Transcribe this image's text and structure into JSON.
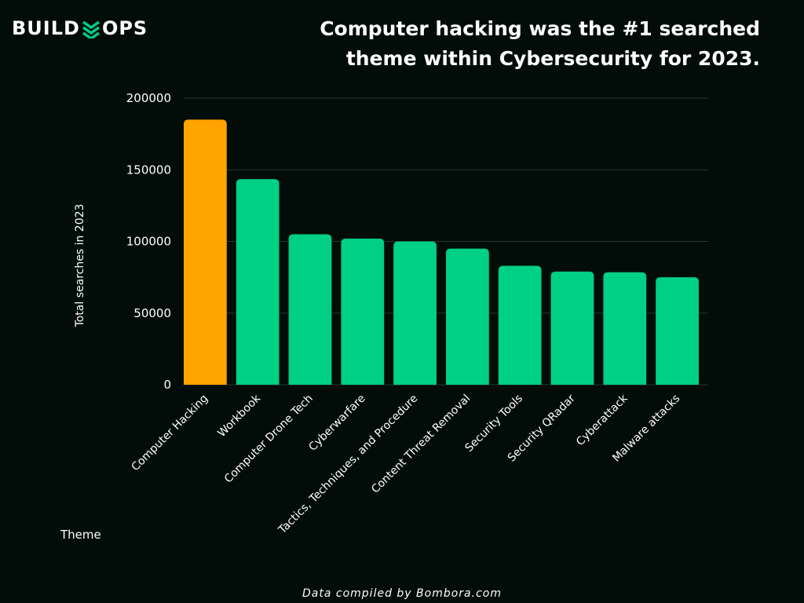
{
  "brand": {
    "name_left": "BUILD",
    "name_right": "OPS",
    "accent_color": "#00cf86"
  },
  "title_lines": [
    "Computer hacking was the #1 searched",
    "theme within Cybersecurity for 2023."
  ],
  "source": "Data compiled by Bombora.com",
  "chart_data": {
    "type": "bar",
    "title": "Computer hacking was the #1 searched theme within Cybersecurity for 2023.",
    "xlabel": "Theme",
    "ylabel": "Total searches in 2023",
    "ylim": [
      0,
      200000
    ],
    "yticks": [
      0,
      50000,
      100000,
      150000,
      200000
    ],
    "ytick_labels": [
      "0",
      "50000",
      "100000",
      "150000",
      "200000"
    ],
    "grid": true,
    "categories": [
      "Computer Hacking",
      "Workbook",
      "Computer Drone Tech",
      "Cyberwarfare",
      "Tactics, Techniques, and Procedure",
      "Content Threat Removal",
      "Security Tools",
      "Security QRadar",
      "Cyberattack",
      "Malware attacks"
    ],
    "values": [
      185000,
      143500,
      105000,
      102000,
      100000,
      95000,
      83000,
      79000,
      78500,
      75000
    ],
    "colors": [
      "#ffa400",
      "#00cf86",
      "#00cf86",
      "#00cf86",
      "#00cf86",
      "#00cf86",
      "#00cf86",
      "#00cf86",
      "#00cf86",
      "#00cf86"
    ],
    "highlight_color": "#ffa400",
    "bar_color": "#00cf86",
    "grid_color": "#2a3430"
  }
}
